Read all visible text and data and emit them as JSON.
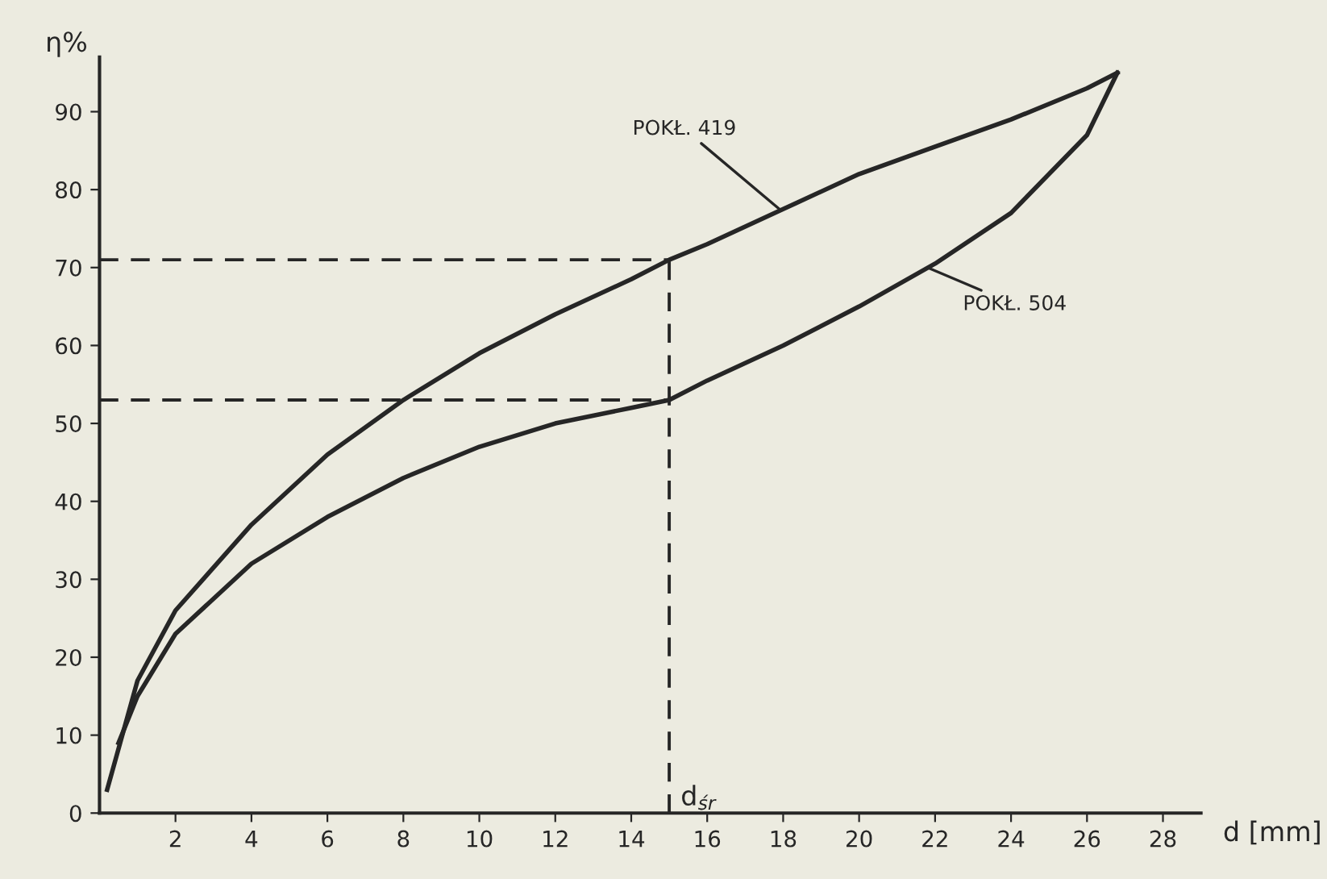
{
  "chart_data": {
    "type": "line",
    "xlabel": "d [mm]",
    "ylabel": "η%",
    "xlim": [
      0,
      29
    ],
    "ylim": [
      0,
      97
    ],
    "xticks": [
      2,
      4,
      6,
      8,
      10,
      12,
      14,
      16,
      18,
      20,
      22,
      24,
      26,
      28
    ],
    "yticks": [
      0,
      10,
      20,
      30,
      40,
      50,
      60,
      70,
      80,
      90
    ],
    "grid": false,
    "line_style": "solid",
    "marker": "none",
    "series": [
      {
        "color": "#262626",
        "x": [
          0.2,
          1,
          2,
          4,
          6,
          8,
          10,
          12,
          14,
          15,
          16,
          18,
          20,
          22,
          24,
          26,
          26.8
        ],
        "values": [
          3,
          17,
          26,
          37,
          46,
          53,
          59,
          64,
          68.5,
          71,
          73,
          77.5,
          82,
          85.5,
          89,
          93,
          95
        ]
      },
      {
        "color": "#262626",
        "x": [
          0.5,
          1,
          2,
          4,
          6,
          8,
          10,
          12,
          14,
          15,
          16,
          18,
          20,
          22,
          24,
          26,
          26.8
        ],
        "values": [
          9,
          15,
          23,
          32,
          38,
          43,
          47,
          50,
          52,
          53,
          55.5,
          60,
          65,
          70.5,
          77,
          87,
          95
        ]
      }
    ],
    "ref_lines": [
      {
        "axis": "y",
        "value": 71,
        "line_style": "dashed"
      },
      {
        "axis": "y",
        "value": 53,
        "line_style": "dashed"
      },
      {
        "axis": "x",
        "value": 15,
        "label": "d$_{śr}$",
        "line_style": "dashed"
      }
    ],
    "annotations": [
      {
        "text": "POKŁ. 419",
        "x": 17.9,
        "y": 77.5
      },
      {
        "text": "POKŁ. 504",
        "x": 21.8,
        "y": 70
      }
    ]
  }
}
